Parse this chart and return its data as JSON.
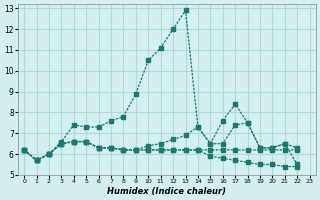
{
  "xlabel": "Humidex (Indice chaleur)",
  "ylabel": "",
  "background_color": "#d4efef",
  "grid_color": "#b0d8d8",
  "line_color": "#1a7a70",
  "xlim": [
    -0.5,
    23.5
  ],
  "ylim": [
    5,
    13.2
  ],
  "yticks": [
    5,
    6,
    7,
    8,
    9,
    10,
    11,
    12,
    13
  ],
  "xticks": [
    0,
    1,
    2,
    3,
    4,
    5,
    6,
    7,
    8,
    9,
    10,
    11,
    12,
    13,
    14,
    15,
    16,
    17,
    18,
    19,
    20,
    21,
    22,
    23
  ],
  "series": [
    [
      6.2,
      5.7,
      6.0,
      6.6,
      7.4,
      7.3,
      7.3,
      7.6,
      7.8,
      8.9,
      10.5,
      11.1,
      12.0,
      12.9,
      7.3,
      6.5,
      7.6,
      8.4,
      7.5,
      6.3,
      6.3,
      6.5,
      6.3,
      null
    ],
    [
      6.2,
      5.7,
      6.0,
      6.5,
      6.6,
      6.6,
      6.3,
      6.3,
      6.2,
      6.2,
      6.4,
      6.5,
      6.7,
      6.9,
      7.3,
      6.5,
      6.5,
      7.4,
      7.5,
      6.3,
      6.3,
      6.5,
      5.5,
      null
    ],
    [
      6.2,
      5.7,
      6.0,
      6.5,
      6.6,
      6.6,
      6.3,
      6.3,
      6.2,
      6.2,
      6.2,
      6.2,
      6.2,
      6.2,
      6.2,
      5.9,
      5.8,
      5.7,
      5.6,
      5.5,
      5.5,
      5.4,
      5.4,
      null
    ],
    [
      6.2,
      5.7,
      6.0,
      6.5,
      6.6,
      6.6,
      6.3,
      6.3,
      6.2,
      6.2,
      6.2,
      6.2,
      6.2,
      6.2,
      6.2,
      6.2,
      6.2,
      6.2,
      6.2,
      6.2,
      6.2,
      6.2,
      6.2,
      null
    ]
  ]
}
